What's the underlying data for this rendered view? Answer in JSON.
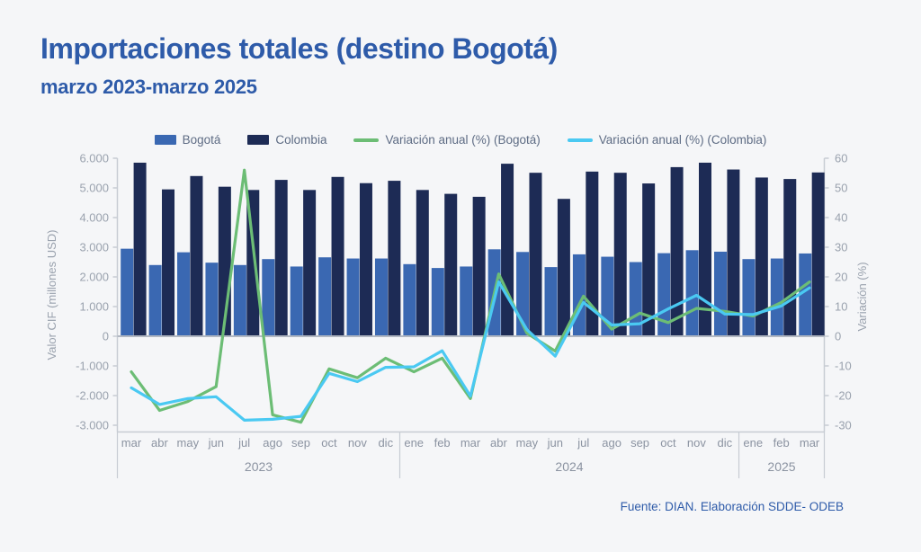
{
  "header": {
    "title": "Importaciones totales (destino Bogotá)",
    "subtitle": "marzo 2023-marzo 2025"
  },
  "legend": {
    "items": [
      {
        "label": "Bogotá",
        "type": "bar",
        "color": "#3a68b2"
      },
      {
        "label": "Colombia",
        "type": "bar",
        "color": "#1d2b55"
      },
      {
        "label": "Variación anual (%) (Bogotá)",
        "type": "line",
        "color": "#6cbd75"
      },
      {
        "label": "Variación anual (%) (Colombia)",
        "type": "line",
        "color": "#4ac9f2"
      }
    ]
  },
  "footer": {
    "source": "Fuente: DIAN. Elaboración SDDE- ODEB"
  },
  "colors": {
    "background": "#f5f6f8",
    "title_blue": "#2e5ba9",
    "bogota_bar": "#3a68b2",
    "colombia_bar": "#1d2b55",
    "bogota_line": "#6cbd75",
    "colombia_line": "#4ac9f2",
    "axis_line": "#c7ccd3",
    "zero_line": "#b2b8c2",
    "tick_text": "#9aa2ae",
    "month_text": "#8b93a1"
  },
  "chart_data": {
    "type": "bar+line",
    "title": "Importaciones totales (destino Bogotá) marzo 2023-marzo 2025",
    "categories": [
      "mar",
      "abr",
      "may",
      "jun",
      "jul",
      "ago",
      "sep",
      "oct",
      "nov",
      "dic",
      "ene",
      "feb",
      "mar",
      "abr",
      "may",
      "jun",
      "jul",
      "ago",
      "sep",
      "oct",
      "nov",
      "dic",
      "ene",
      "feb",
      "mar"
    ],
    "year_groups": [
      {
        "label": "2023",
        "months": 10
      },
      {
        "label": "2024",
        "months": 12
      },
      {
        "label": "2025",
        "months": 3
      }
    ],
    "bar_series": [
      {
        "name": "Bogotá",
        "color": "#3a68b2",
        "axis": "left",
        "values": [
          2950,
          2400,
          2830,
          2480,
          2400,
          2600,
          2350,
          2660,
          2620,
          2620,
          2430,
          2300,
          2350,
          2930,
          2840,
          2330,
          2760,
          2680,
          2500,
          2800,
          2900,
          2850,
          2600,
          2620,
          2790
        ]
      },
      {
        "name": "Colombia",
        "color": "#1d2b55",
        "axis": "left",
        "values": [
          5850,
          4950,
          5400,
          5040,
          4930,
          5270,
          4930,
          5370,
          5160,
          5240,
          4930,
          4800,
          4700,
          5815,
          5510,
          4630,
          5550,
          5510,
          5150,
          5700,
          5850,
          5620,
          5350,
          5300,
          5520
        ]
      }
    ],
    "line_series": [
      {
        "name": "Variación anual (%) (Bogotá)",
        "color": "#6cbd75",
        "axis": "right",
        "values": [
          -12,
          -25,
          -22,
          -17,
          56,
          -26.5,
          -29,
          -11,
          -14,
          -7.4,
          -12,
          -7.4,
          -21,
          21,
          1,
          -5,
          13.5,
          2.4,
          7.8,
          4.6,
          9.4,
          8.4,
          6.8,
          11.4,
          18.3
        ]
      },
      {
        "name": "Variación anual (%) (Colombia)",
        "color": "#4ac9f2",
        "axis": "right",
        "values": [
          -17.4,
          -23,
          -21,
          -20.4,
          -28.3,
          -28,
          -27,
          -12.5,
          -15.3,
          -10.5,
          -10.3,
          -4.9,
          -20.2,
          18.3,
          2.2,
          -6.7,
          11.4,
          3.8,
          4.2,
          9.2,
          13.8,
          7.5,
          7.3,
          10.2,
          16.3
        ]
      }
    ],
    "left_axis": {
      "title": "Valor CIF (millones USD)",
      "min": -3000,
      "max": 6000,
      "ticks": [
        {
          "label": "6.000",
          "value": 6000
        },
        {
          "label": "5.000",
          "value": 5000
        },
        {
          "label": "4.000",
          "value": 4000
        },
        {
          "label": "3.000",
          "value": 3000
        },
        {
          "label": "2.000",
          "value": 2000
        },
        {
          "label": "1.000",
          "value": 1000
        },
        {
          "label": "0",
          "value": 0
        },
        {
          "label": "-1.000",
          "value": -1000
        },
        {
          "label": "-2.000",
          "value": -2000
        },
        {
          "label": "-3.000",
          "value": -3000
        }
      ]
    },
    "right_axis": {
      "title": "Variación (%)",
      "min": -30,
      "max": 60,
      "ticks": [
        {
          "label": "60",
          "value": 60
        },
        {
          "label": "50",
          "value": 50
        },
        {
          "label": "40",
          "value": 40
        },
        {
          "label": "30",
          "value": 30
        },
        {
          "label": "20",
          "value": 20
        },
        {
          "label": "10",
          "value": 10
        },
        {
          "label": "0",
          "value": 0
        },
        {
          "label": "-10",
          "value": -10
        },
        {
          "label": "-20",
          "value": -20
        },
        {
          "label": "-30",
          "value": -30
        }
      ]
    },
    "grid": false,
    "legend_position": "top-center"
  }
}
